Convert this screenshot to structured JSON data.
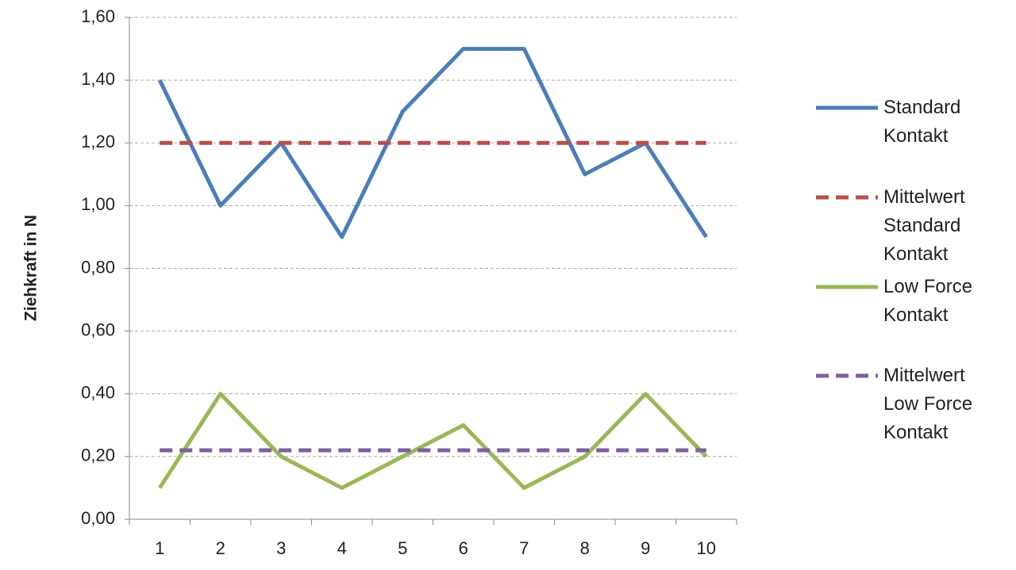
{
  "chart_data": {
    "type": "line",
    "y_label": "Ziehkraft in N",
    "categories": [
      1,
      2,
      3,
      4,
      5,
      6,
      7,
      8,
      9,
      10
    ],
    "series": [
      {
        "name": "Standard Kontakt",
        "color": "#4a7ebb",
        "style": "solid",
        "values": [
          1.4,
          1.0,
          1.2,
          0.9,
          1.3,
          1.5,
          1.5,
          1.1,
          1.2,
          0.9
        ]
      },
      {
        "name": "Mittelwert Standard Kontakt",
        "color": "#be4b48",
        "style": "dashed",
        "values": [
          1.2,
          1.2,
          1.2,
          1.2,
          1.2,
          1.2,
          1.2,
          1.2,
          1.2,
          1.2
        ]
      },
      {
        "name": "Low Force Kontakt",
        "color": "#98b954",
        "style": "solid",
        "values": [
          0.1,
          0.4,
          0.2,
          0.1,
          0.2,
          0.3,
          0.1,
          0.2,
          0.4,
          0.2
        ]
      },
      {
        "name": "Mittelwert Low Force Kontakt",
        "color": "#7d5fa0",
        "style": "dashed",
        "values": [
          0.22,
          0.22,
          0.22,
          0.22,
          0.22,
          0.22,
          0.22,
          0.22,
          0.22,
          0.22
        ]
      }
    ],
    "ylim": [
      0,
      1.6
    ],
    "yticks": [
      {
        "value": 0,
        "label": "0,00"
      },
      {
        "value": 0.2,
        "label": "0,20"
      },
      {
        "value": 0.4,
        "label": "0,40"
      },
      {
        "value": 0.6,
        "label": "0,60"
      },
      {
        "value": 0.8,
        "label": "0,80"
      },
      {
        "value": 1.0,
        "label": "1,00"
      },
      {
        "value": 1.2,
        "label": "1,20"
      },
      {
        "value": 1.4,
        "label": "1,40"
      },
      {
        "value": 1.6,
        "label": "1,60"
      }
    ],
    "grid": true,
    "legend": "right"
  }
}
